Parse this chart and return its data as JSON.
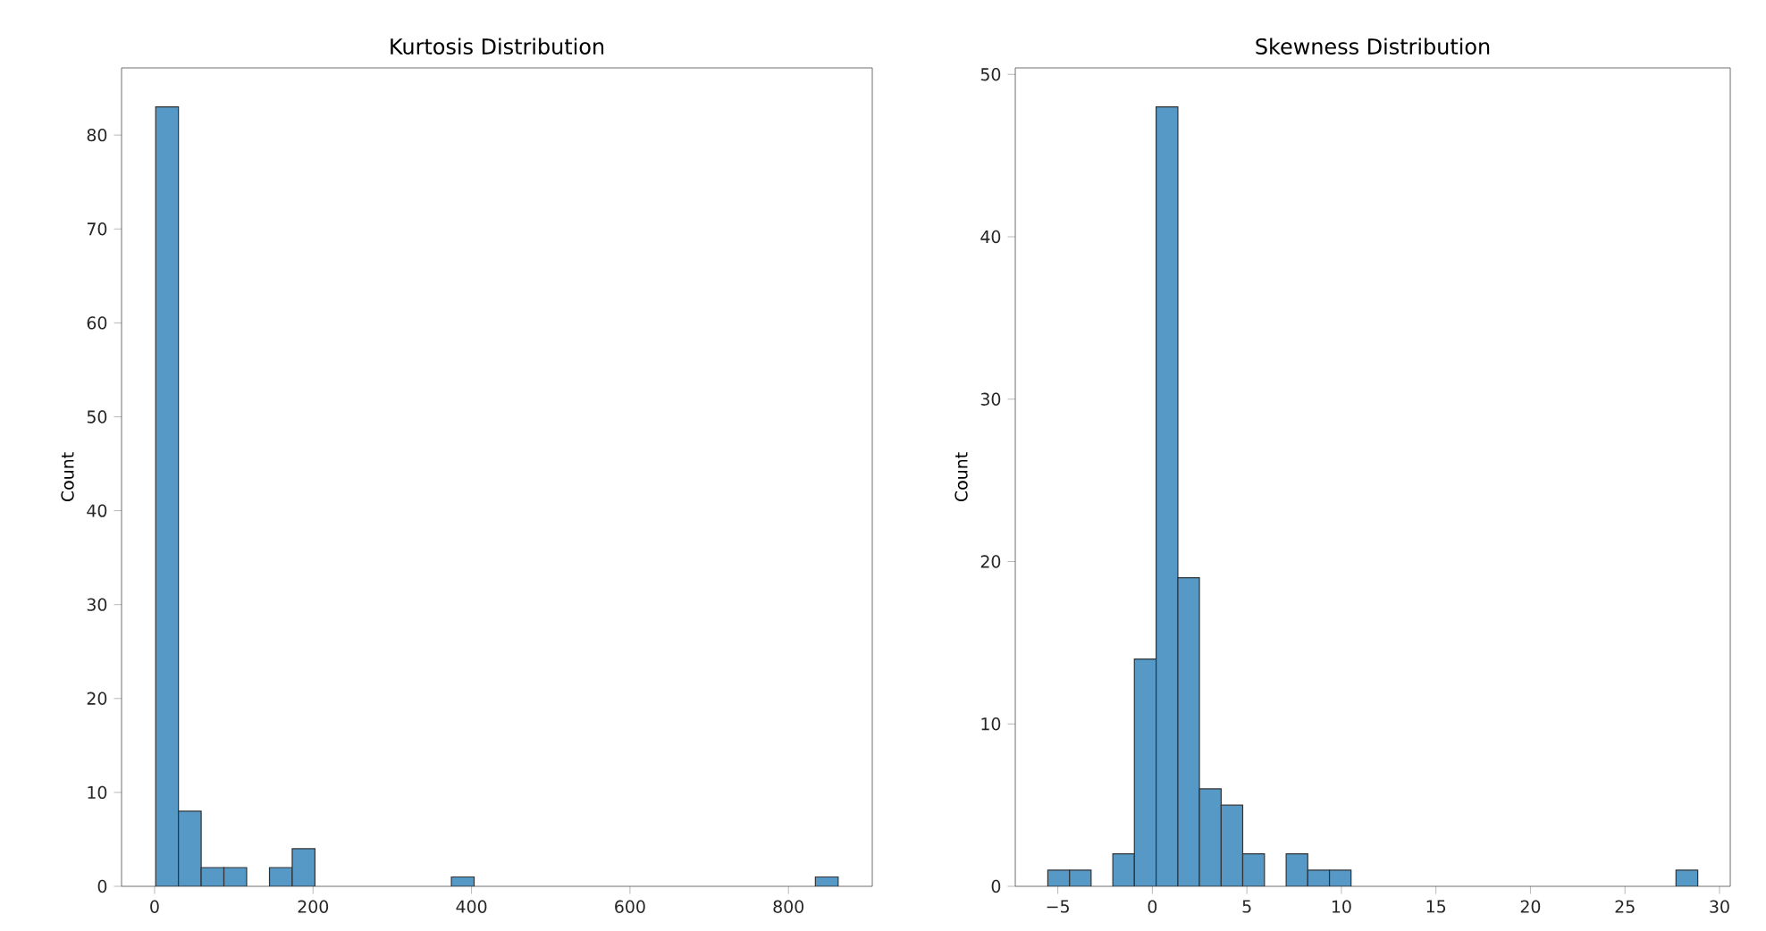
{
  "chart_data": [
    {
      "type": "histogram",
      "title": "Kurtosis Distribution",
      "ylabel": "Count",
      "color": "#5698c6",
      "bins": [
        1.4,
        30.1,
        58.8,
        87.5,
        116.2,
        145.0,
        173.7,
        202.4,
        231.1,
        259.8,
        288.5,
        317.2,
        345.9,
        374.6,
        403.3,
        432.1,
        460.8,
        489.5,
        518.2,
        546.9,
        575.6,
        604.3,
        633.0,
        661.7,
        690.4,
        719.2,
        747.9,
        776.6,
        805.3,
        834.0,
        862.7
      ],
      "values": [
        83,
        8,
        2,
        2,
        0,
        2,
        4,
        0,
        0,
        0,
        0,
        0,
        0,
        1,
        0,
        0,
        0,
        0,
        0,
        0,
        0,
        0,
        0,
        0,
        0,
        0,
        0,
        0,
        0,
        1
      ],
      "xlim": [
        -41.7,
        905.8
      ],
      "ylim": [
        0,
        87.15
      ],
      "xticks": [
        0,
        200,
        400,
        600,
        800
      ],
      "yticks": [
        0,
        10,
        20,
        30,
        40,
        50,
        60,
        70,
        80
      ]
    },
    {
      "type": "histogram",
      "title": "Skewness Distribution",
      "ylabel": "Count",
      "color": "#5698c6",
      "bins": [
        -5.53,
        -4.38,
        -3.24,
        -2.09,
        -0.95,
        0.2,
        1.35,
        2.49,
        3.64,
        4.78,
        5.93,
        7.08,
        8.22,
        9.37,
        10.51,
        11.66,
        12.81,
        13.95,
        15.1,
        16.24,
        17.39,
        18.54,
        19.68,
        20.83,
        21.97,
        23.12,
        24.27,
        25.41,
        26.56,
        27.7,
        28.85
      ],
      "values": [
        1,
        1,
        0,
        2,
        14,
        48,
        19,
        6,
        5,
        2,
        0,
        2,
        1,
        1,
        0,
        0,
        0,
        0,
        0,
        0,
        0,
        0,
        0,
        0,
        0,
        0,
        0,
        0,
        0,
        1
      ],
      "xlim": [
        -7.25,
        30.57
      ],
      "ylim": [
        0,
        50.4
      ],
      "xticks": [
        {
          "value": -5,
          "label": "−5"
        },
        0,
        5,
        10,
        15,
        20,
        25,
        30
      ],
      "yticks": [
        0,
        10,
        20,
        30,
        40,
        50
      ]
    }
  ]
}
